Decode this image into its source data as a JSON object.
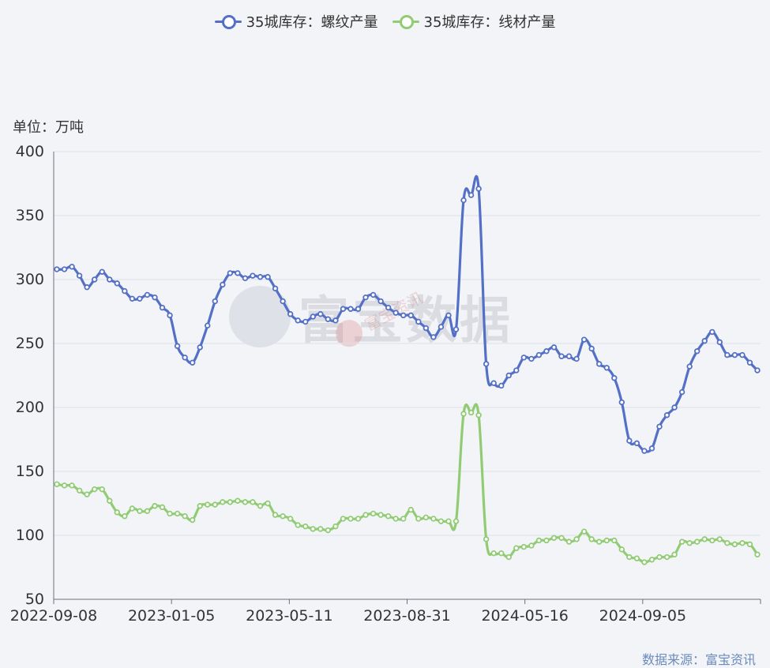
{
  "legend": [
    {
      "name": "35城库存：螺纹产量",
      "color": "#5470c6"
    },
    {
      "name": "35城库存：线材产量",
      "color": "#91cc75"
    }
  ],
  "unit_label": "单位：万吨",
  "source_label": "数据来源：富宝资讯",
  "watermark": {
    "main": "富宝数据",
    "stamp": "富宝资讯"
  },
  "chart_data": {
    "type": "line",
    "ylim": [
      50,
      400
    ],
    "yticks": [
      50,
      100,
      150,
      200,
      250,
      300,
      350,
      400
    ],
    "grid": true,
    "legend_position": "top-center",
    "xtick_labels": [
      "2022-09-08",
      "2023-01-05",
      "2023-05-11",
      "2023-08-31",
      "2024-05-16",
      "2024-09-05"
    ],
    "series": [
      {
        "name": "35城库存：螺纹产量",
        "color": "#5470c6",
        "values": [
          308,
          308,
          310,
          303,
          294,
          300,
          306,
          300,
          297,
          291,
          285,
          285,
          288,
          286,
          278,
          272,
          248,
          239,
          235,
          247,
          264,
          283,
          296,
          305,
          305,
          301,
          303,
          302,
          302,
          293,
          283,
          273,
          268,
          267,
          271,
          273,
          269,
          268,
          277,
          277,
          277,
          286,
          288,
          283,
          278,
          274,
          272,
          272,
          267,
          262,
          255,
          263,
          272,
          261,
          362,
          366,
          371,
          234,
          219,
          217,
          225,
          229,
          239,
          238,
          241,
          244,
          247,
          240,
          240,
          238,
          253,
          246,
          234,
          231,
          223,
          204,
          174,
          172,
          166,
          168,
          185,
          194,
          200,
          212,
          232,
          244,
          252,
          259,
          251,
          241,
          241,
          241,
          235,
          229
        ]
      },
      {
        "name": "35城库存：线材产量",
        "color": "#91cc75",
        "values": [
          140,
          139,
          139,
          135,
          132,
          136,
          136,
          127,
          118,
          115,
          121,
          119,
          119,
          123,
          122,
          117,
          117,
          115,
          112,
          123,
          124,
          124,
          126,
          126,
          127,
          126,
          126,
          123,
          125,
          116,
          115,
          113,
          108,
          107,
          105,
          105,
          104,
          107,
          113,
          113,
          113,
          116,
          117,
          116,
          115,
          113,
          113,
          120,
          113,
          114,
          113,
          111,
          111,
          111,
          195,
          196,
          194,
          97,
          86,
          86,
          83,
          90,
          91,
          92,
          96,
          96,
          98,
          98,
          95,
          97,
          103,
          97,
          95,
          96,
          96,
          89,
          83,
          82,
          79,
          81,
          83,
          83,
          85,
          95,
          94,
          95,
          97,
          96,
          97,
          94,
          93,
          94,
          93,
          85
        ]
      }
    ]
  }
}
